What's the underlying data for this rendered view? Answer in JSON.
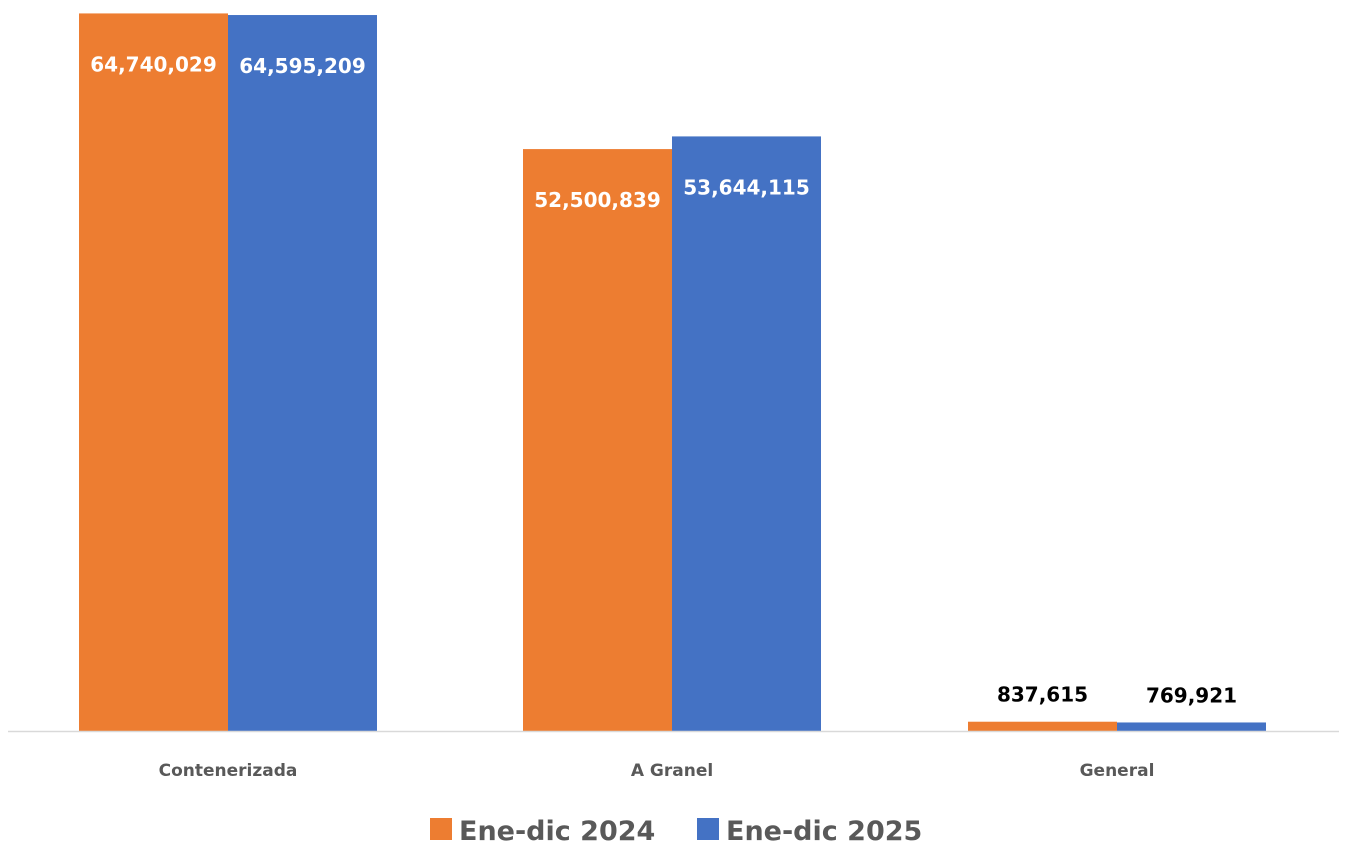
{
  "chart_data": {
    "type": "bar",
    "categories": [
      "Contenerizada",
      "A Granel",
      "General"
    ],
    "series": [
      {
        "name": "Ene-dic 2024",
        "values": [
          64740029,
          52500839,
          837615
        ],
        "labels": [
          "64,740,029",
          "52,500,839",
          "837,615"
        ],
        "color": "#ED7D31"
      },
      {
        "name": "Ene-dic 2025",
        "values": [
          64595209,
          53644115,
          769921
        ],
        "labels": [
          "64,595,209",
          "53,644,115",
          "769,921"
        ],
        "color": "#4472C4"
      }
    ],
    "title": "",
    "xlabel": "",
    "ylabel": "",
    "ylim": [
      0,
      65500000
    ],
    "grid": false,
    "legend": "bottom",
    "axis_color": "#D9D9D9",
    "inside_label_color": "#FFFFFF",
    "outside_label_color": "#000000"
  }
}
